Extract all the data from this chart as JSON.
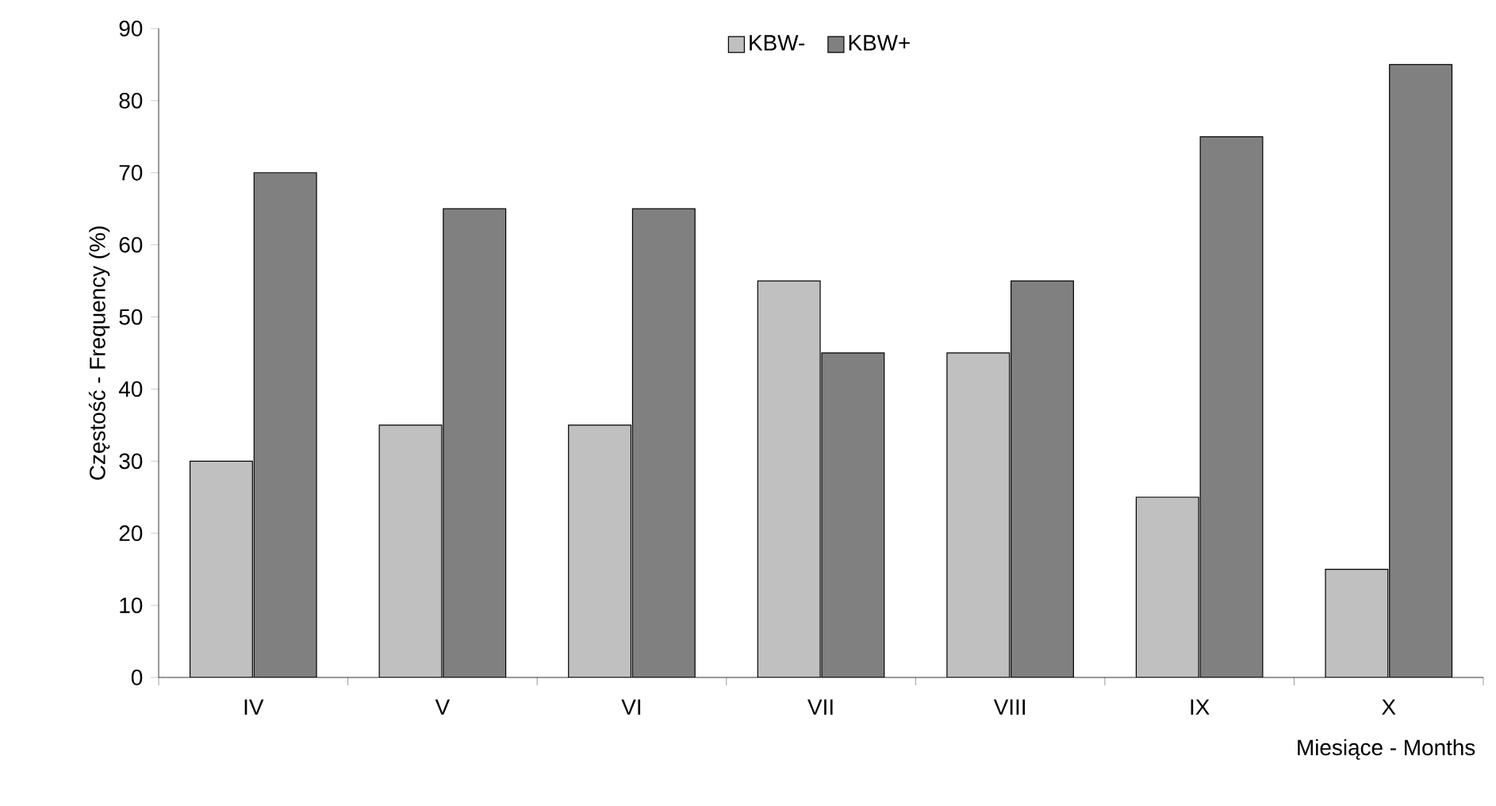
{
  "chart_data": {
    "type": "bar",
    "xlabel": "Miesiące - Months",
    "ylabel": "Częstość - Frequency (%)",
    "categories": [
      "IV",
      "V",
      "VI",
      "VII",
      "VIII",
      "IX",
      "X"
    ],
    "series": [
      {
        "name": "KBW-",
        "color": "#c0c0c0",
        "values": [
          30,
          35,
          35,
          55,
          45,
          25,
          15
        ]
      },
      {
        "name": "KBW+",
        "color": "#808080",
        "values": [
          70,
          65,
          65,
          45,
          55,
          75,
          85
        ]
      }
    ],
    "ylim": [
      0,
      90
    ],
    "yticks": [
      0,
      10,
      20,
      30,
      40,
      50,
      60,
      70,
      80,
      90
    ],
    "grid": false,
    "legend": "top"
  }
}
